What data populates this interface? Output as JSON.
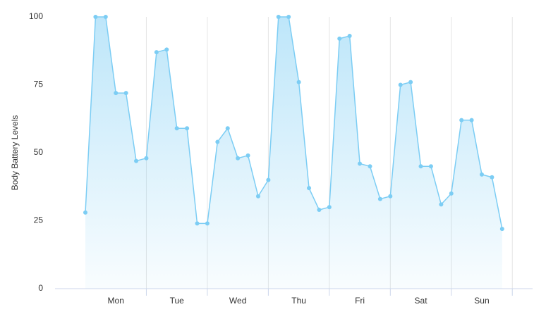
{
  "chart_data": {
    "type": "area",
    "y_label": "Body Battery Levels",
    "categories": [
      null,
      null,
      null,
      "Mon",
      null,
      null,
      null,
      null,
      null,
      "Tue",
      null,
      null,
      null,
      null,
      null,
      "Wed",
      null,
      null,
      null,
      null,
      null,
      "Thu",
      null,
      null,
      null,
      null,
      null,
      "Fri",
      null,
      null,
      null,
      null,
      null,
      "Sat",
      null,
      null,
      null,
      null,
      null,
      "Sun",
      null,
      null
    ],
    "values": [
      28,
      100,
      100,
      72,
      72,
      47,
      48,
      87,
      88,
      59,
      59,
      24,
      24,
      54,
      59,
      48,
      49,
      34,
      40,
      100,
      100,
      76,
      37,
      29,
      30,
      92,
      93,
      46,
      45,
      33,
      34,
      75,
      76,
      45,
      45,
      31,
      35,
      62,
      62,
      42,
      41,
      22
    ],
    "color": "#7ccdf4",
    "ylim": [
      0,
      100
    ],
    "yticks": [
      0,
      25,
      50,
      75,
      100
    ]
  }
}
